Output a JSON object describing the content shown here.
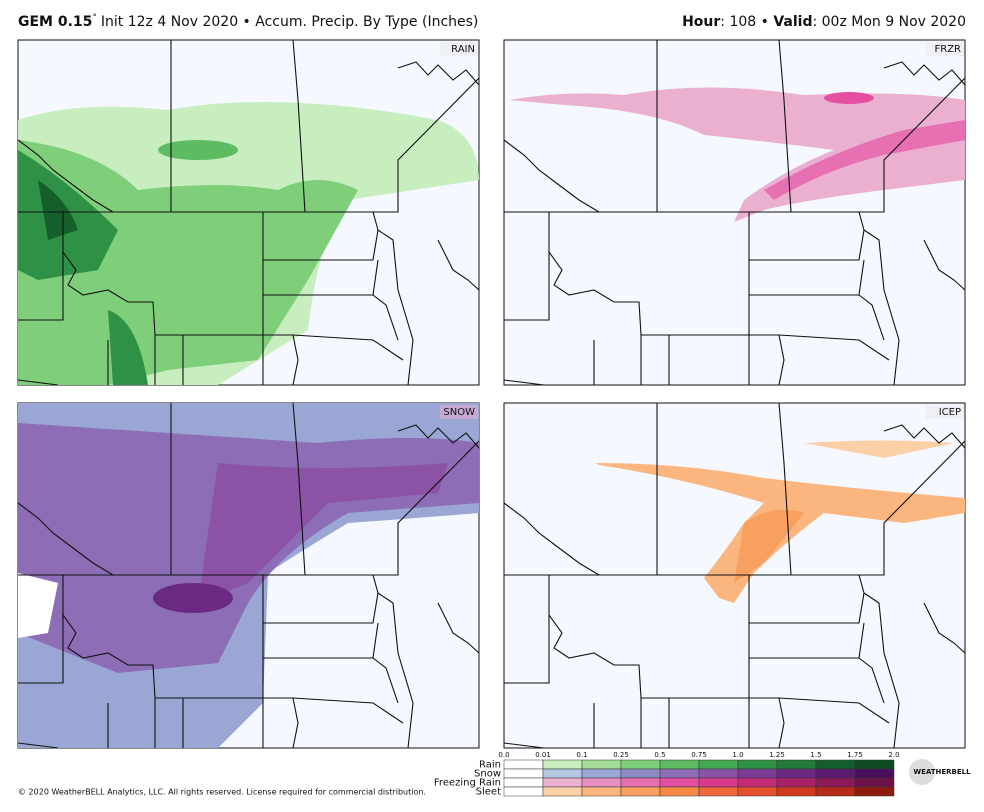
{
  "header": {
    "model": "GEM 0.15",
    "degree": "°",
    "info": "Init 12z 4 Nov 2020 • Accum. Precip. By Type (Inches)",
    "hour_label": "Hour",
    "hour": ": 108 • ",
    "valid_label": "Valid",
    "valid": ": 00z Mon 9 Nov 2020"
  },
  "panels": [
    {
      "label": "RAIN"
    },
    {
      "label": "FRZR"
    },
    {
      "label": "SNOW"
    },
    {
      "label": "ICEP"
    }
  ],
  "legend": {
    "ticks": [
      "0.0",
      "0.01",
      "0.1",
      "0.25",
      "0.5",
      "0.75",
      "1.0",
      "1.25",
      "1.5",
      "1.75",
      "2.0"
    ],
    "rows": [
      {
        "name": "Rain",
        "colors": [
          "#ffffff",
          "#c8eec0",
          "#a3dc98",
          "#7fcf7a",
          "#5dbb62",
          "#44a853",
          "#2f9145",
          "#207a38",
          "#145f2c",
          "#0c4a22"
        ]
      },
      {
        "name": "Snow",
        "colors": [
          "#ffffff",
          "#b4c8e4",
          "#9aa6d4",
          "#8f89c4",
          "#8c6db6",
          "#8b52a6",
          "#7c3c96",
          "#6a2982",
          "#5a1a70",
          "#4a0f5c"
        ]
      },
      {
        "name": "Freezing Rain",
        "colors": [
          "#ffffff",
          "#ebb0cf",
          "#e790c0",
          "#e670b2",
          "#e44fa2",
          "#d93a8e",
          "#c42c7a",
          "#a8226a",
          "#8c1a5a",
          "#6e124a"
        ]
      },
      {
        "name": "Sleet",
        "colors": [
          "#ffffff",
          "#fcd0a6",
          "#fbb57f",
          "#f7a060",
          "#f58a48",
          "#f0683a",
          "#e4502c",
          "#d03a20",
          "#b82a18",
          "#901c10"
        ]
      }
    ]
  },
  "footer": {
    "copyright": "© 2020 WeatherBELL Analytics, LLC. All rights reserved. License required for commercial distribution."
  },
  "logo": "WEATHERBELL"
}
